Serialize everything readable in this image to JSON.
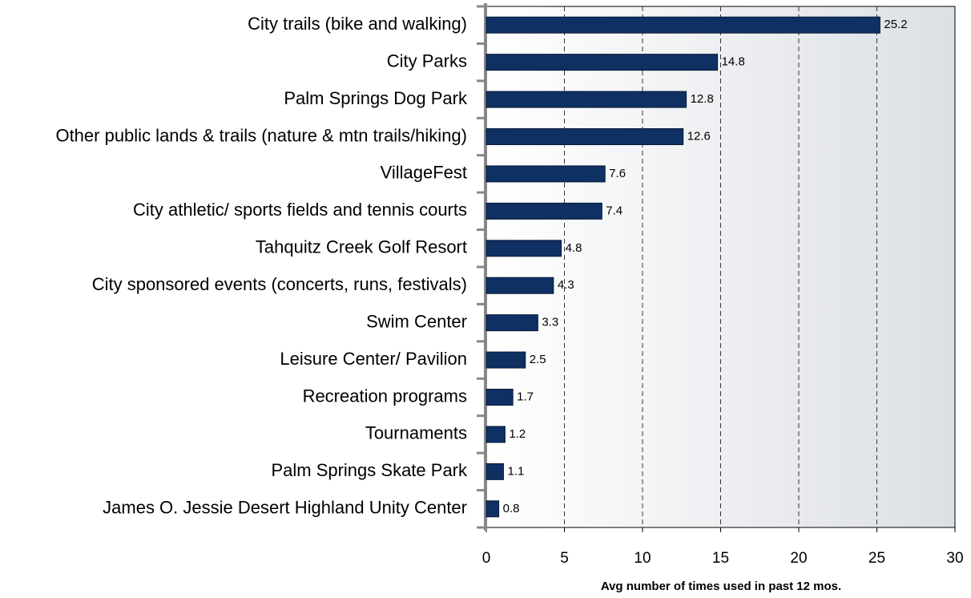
{
  "chart_data": {
    "type": "bar",
    "orientation": "horizontal",
    "categories": [
      "City trails (bike and walking)",
      "City Parks",
      "Palm Springs Dog Park",
      "Other public lands & trails (nature & mtn trails/hiking)",
      "VillageFest",
      "City athletic/ sports fields and tennis courts",
      "Tahquitz Creek Golf Resort",
      "City sponsored events (concerts, runs, festivals)",
      "Swim Center",
      "Leisure Center/ Pavilion",
      "Recreation programs",
      "Tournaments",
      "Palm Springs Skate Park",
      "James O. Jessie Desert Highland Unity Center"
    ],
    "values": [
      25.2,
      14.8,
      12.8,
      12.6,
      7.6,
      7.4,
      4.8,
      4.3,
      3.3,
      2.5,
      1.7,
      1.2,
      1.1,
      0.8
    ],
    "color": "#0f3063",
    "xlabel": "Avg number of times used in past 12 mos.",
    "xlim": [
      0,
      30
    ],
    "xticks": [
      0,
      5,
      10,
      15,
      20,
      25,
      30
    ],
    "grid": true
  }
}
